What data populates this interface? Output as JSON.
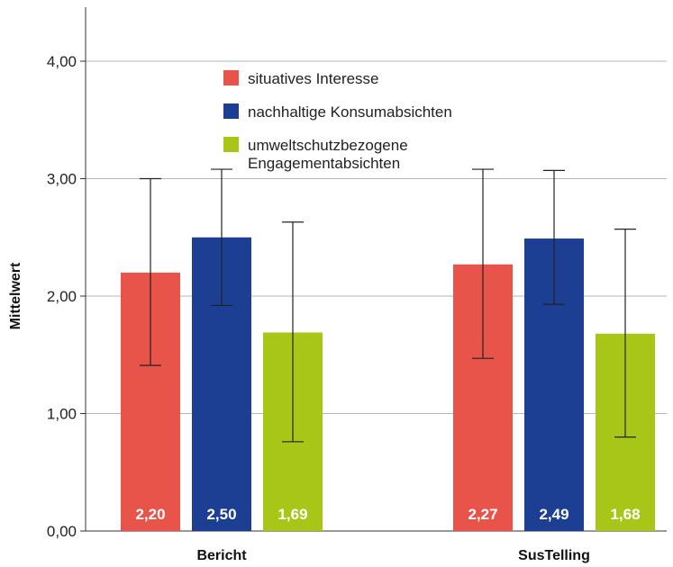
{
  "chart_data": {
    "type": "bar",
    "ylabel": "Mittelwert",
    "ylim": [
      0,
      4.5
    ],
    "yticks": [
      "0,00",
      "1,00",
      "2,00",
      "3,00",
      "4,00"
    ],
    "categories": [
      "Bericht",
      "SusTelling"
    ],
    "grid": true,
    "legend_position": "top-center",
    "series": [
      {
        "name": "situatives Interesse",
        "color": "#e8534a",
        "values": [
          2.2,
          2.27
        ],
        "labels": [
          "2,20",
          "2,27"
        ],
        "error_low": [
          1.41,
          1.47
        ],
        "error_high": [
          3.0,
          3.08
        ]
      },
      {
        "name": "nachhaltige Konsumabsichten",
        "color": "#1c3f94",
        "values": [
          2.5,
          2.49
        ],
        "labels": [
          "2,50",
          "2,49"
        ],
        "error_low": [
          1.92,
          1.93
        ],
        "error_high": [
          3.08,
          3.07
        ]
      },
      {
        "name_lines": [
          "umweltschutzbezogene",
          "Engagementabsichten"
        ],
        "color": "#a8c617",
        "values": [
          1.69,
          1.68
        ],
        "labels": [
          "1,69",
          "1,68"
        ],
        "error_low": [
          0.76,
          0.8
        ],
        "error_high": [
          2.63,
          2.57
        ]
      }
    ]
  }
}
